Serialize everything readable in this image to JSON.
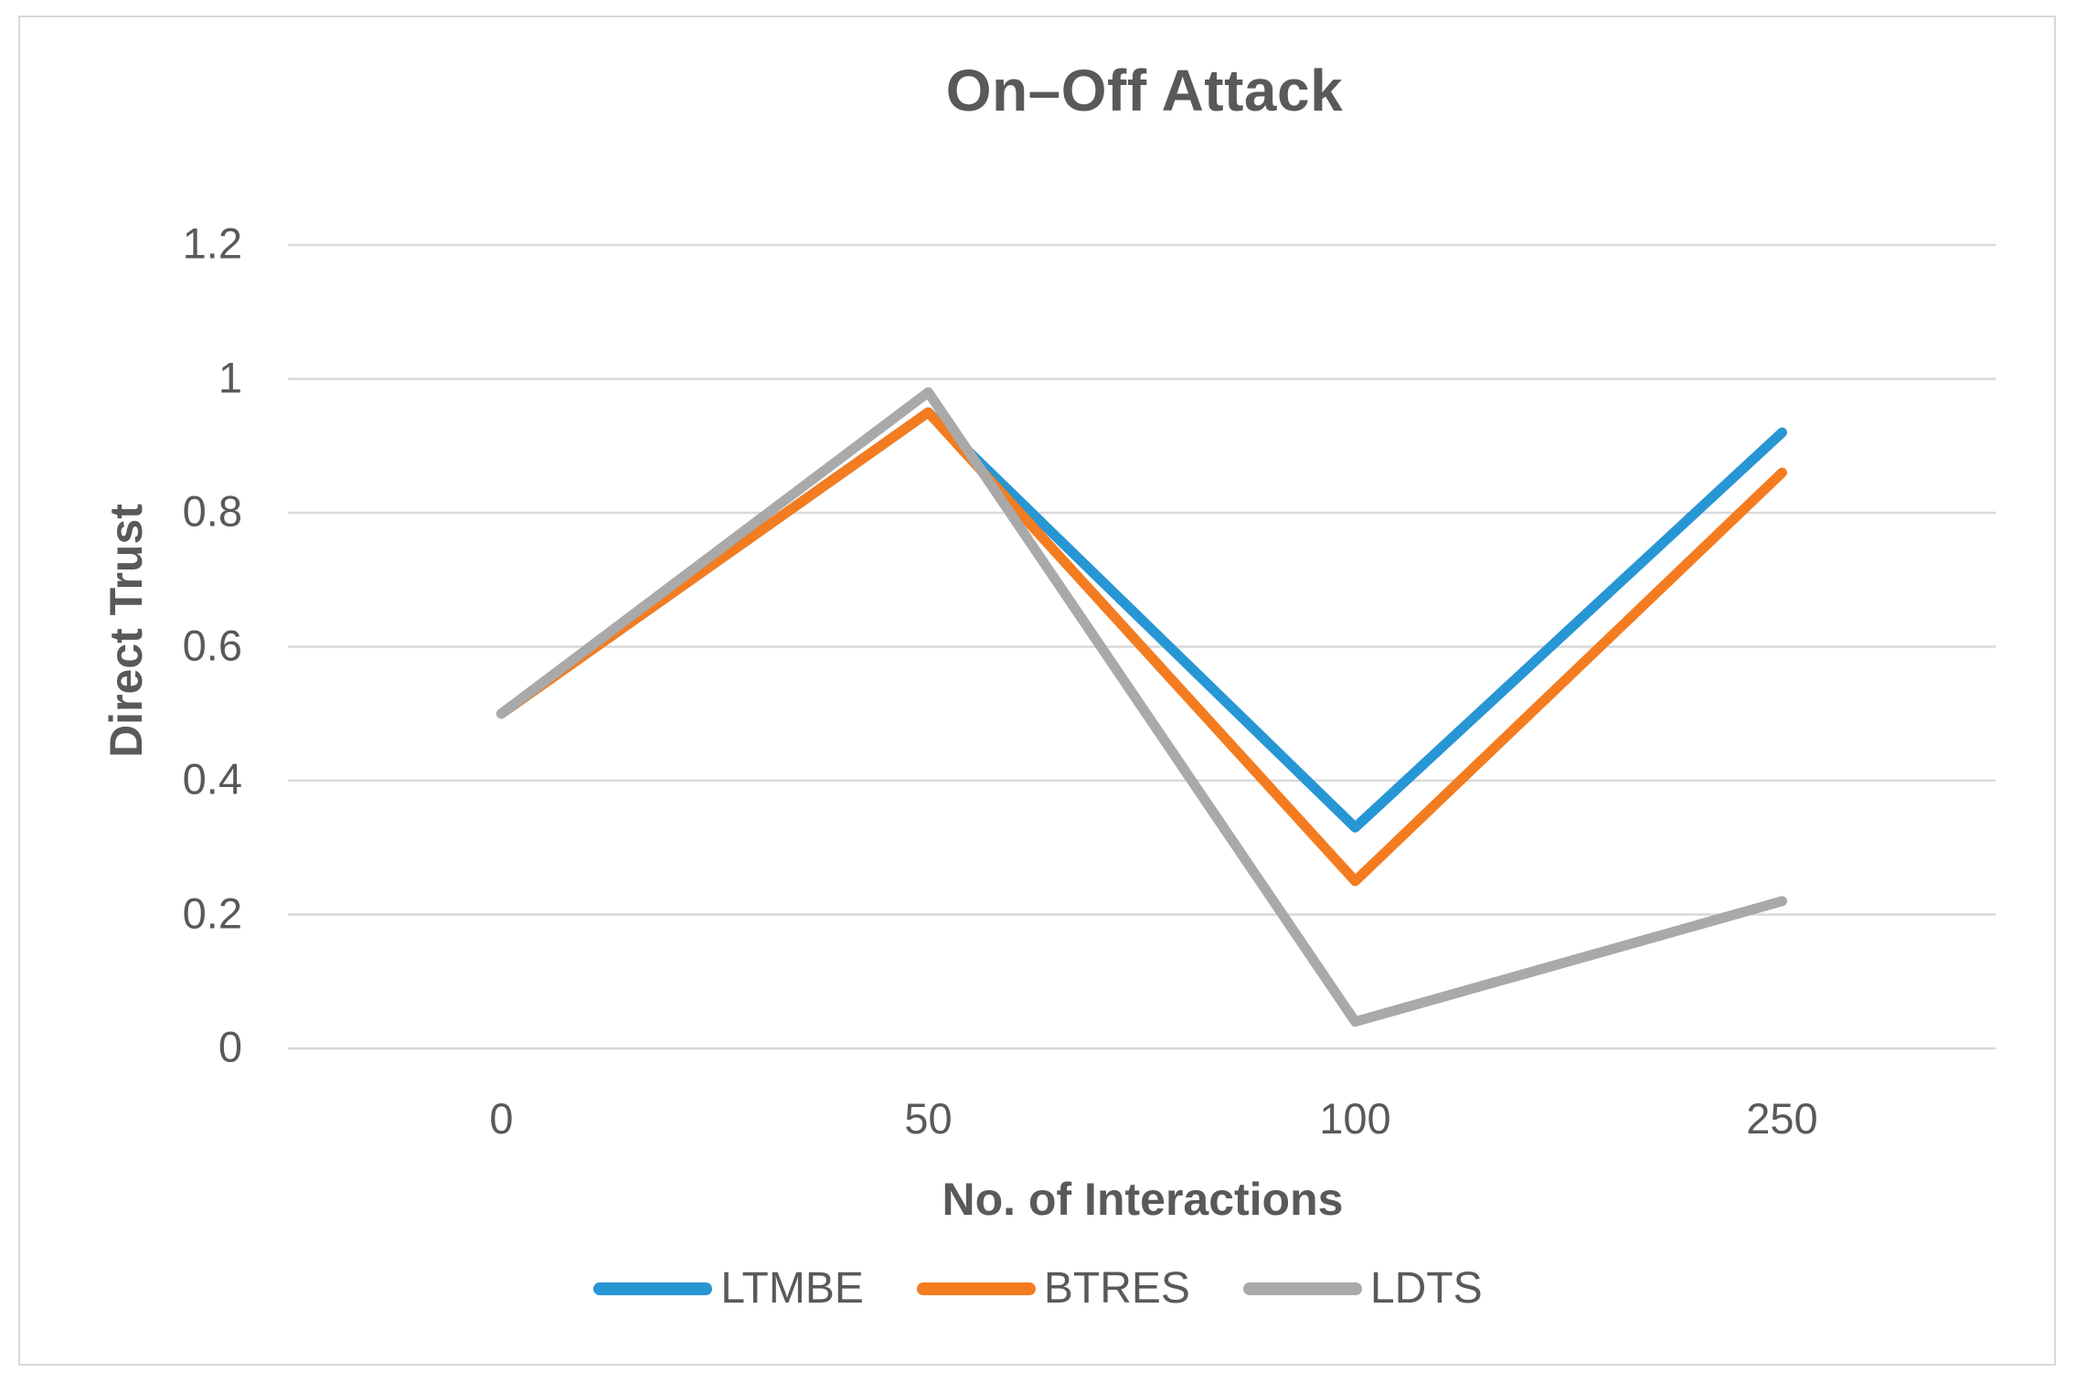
{
  "chart_data": {
    "type": "line",
    "title": "On–Off Attack",
    "xlabel": "No. of Interactions",
    "ylabel": "Direct Trust",
    "categories": [
      "0",
      "50",
      "100",
      "250"
    ],
    "y_tick_labels": [
      "0",
      "0.2",
      "0.4",
      "0.6",
      "0.8",
      "1",
      "1.2"
    ],
    "ylim": [
      0,
      1.2
    ],
    "grid": true,
    "legend_position": "bottom",
    "series": [
      {
        "name": "LTMBE",
        "color": "#2796d4",
        "values": [
          0.5,
          0.95,
          0.33,
          0.92
        ]
      },
      {
        "name": "BTRES",
        "color": "#f47c20",
        "values": [
          0.5,
          0.95,
          0.25,
          0.86
        ]
      },
      {
        "name": "LDTS",
        "color": "#a9a9a9",
        "values": [
          0.5,
          0.98,
          0.04,
          0.22
        ]
      }
    ],
    "gridline_color": "#d9d9d9",
    "text_color": "#595959"
  }
}
